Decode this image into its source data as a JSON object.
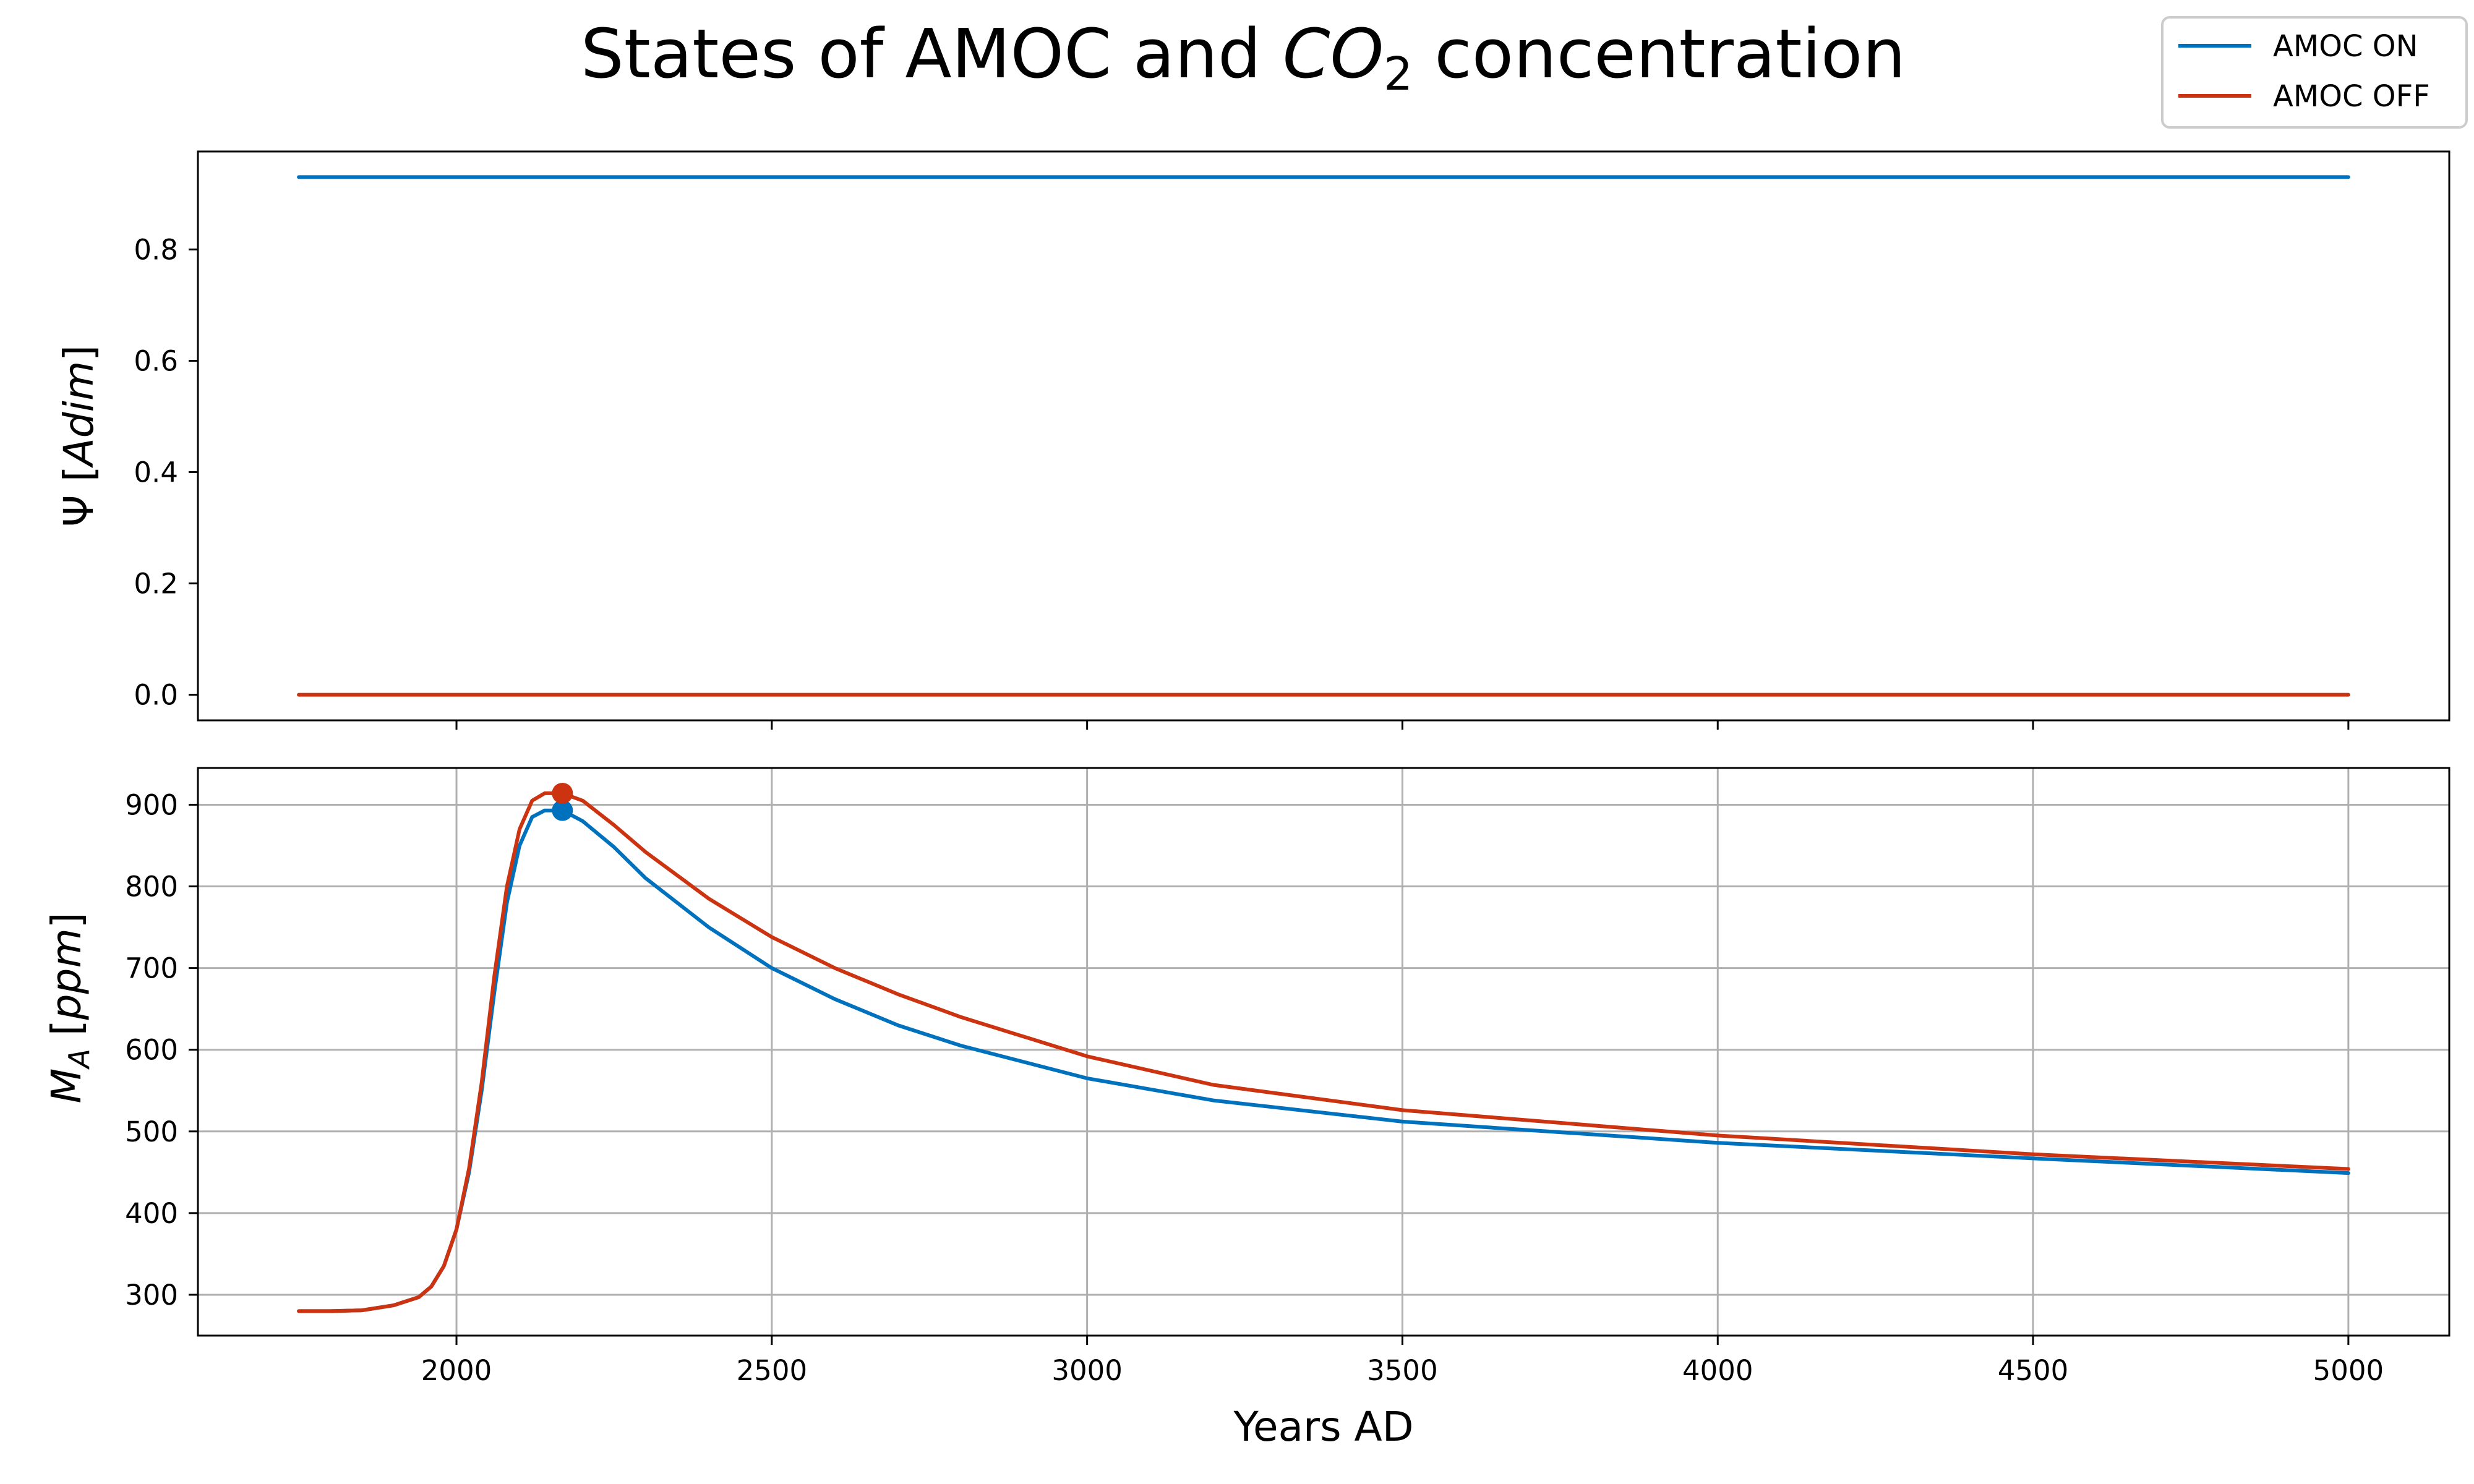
{
  "chart_data": {
    "type": "line",
    "title": "States of AMOC and CO₂ concentration",
    "title_parts": {
      "prefix": "States of AMOC and ",
      "italic": "CO",
      "subscript": "2",
      "suffix": " concentration"
    },
    "legend": {
      "placement": "top-right",
      "entries": [
        {
          "name": "AMOC ON",
          "color": "#0072bd"
        },
        {
          "name": "AMOC OFF",
          "color": "#cc3311"
        }
      ]
    },
    "xlabel": "Years AD",
    "xlim": [
      1590,
      5160
    ],
    "xticks": [
      2000,
      2500,
      3000,
      3500,
      4000,
      4500,
      5000
    ],
    "xtick_labels": [
      "2000",
      "2500",
      "3000",
      "3500",
      "4000",
      "4500",
      "5000"
    ],
    "panels": [
      {
        "id": "psi",
        "ylabel": {
          "symbol": "Ψ",
          "unit_italic": "Adim"
        },
        "ylim": [
          -0.046,
          0.976
        ],
        "yticks": [
          0.0,
          0.2,
          0.4,
          0.6,
          0.8
        ],
        "ytick_labels": [
          "0.0",
          "0.2",
          "0.4",
          "0.6",
          "0.8"
        ],
        "grid": false,
        "series": [
          {
            "name": "AMOC ON",
            "color": "#0072bd",
            "x": [
              1750,
              5000
            ],
            "y": [
              0.93,
              0.93
            ]
          },
          {
            "name": "AMOC OFF",
            "color": "#cc3311",
            "x": [
              1750,
              5000
            ],
            "y": [
              0.0,
              0.0
            ]
          }
        ]
      },
      {
        "id": "ma",
        "ylabel": {
          "symbol": "M",
          "subscript": "A",
          "unit_italic": "ppm"
        },
        "ylim": [
          250,
          945
        ],
        "yticks": [
          300,
          400,
          500,
          600,
          700,
          800,
          900
        ],
        "ytick_labels": [
          "300",
          "400",
          "500",
          "600",
          "700",
          "800",
          "900"
        ],
        "grid": true,
        "series": [
          {
            "name": "AMOC ON",
            "color": "#0072bd",
            "x": [
              1750,
              1800,
              1850,
              1900,
              1940,
              1960,
              1980,
              2000,
              2020,
              2040,
              2060,
              2080,
              2100,
              2120,
              2140,
              2168,
              2200,
              2250,
              2300,
              2400,
              2500,
              2600,
              2700,
              2800,
              3000,
              3200,
              3500,
              4000,
              4500,
              5000
            ],
            "y": [
              280,
              280,
              281,
              287,
              297,
              310,
              335,
              380,
              450,
              550,
              670,
              780,
              850,
              885,
              893,
              893,
              880,
              848,
              810,
              750,
              700,
              662,
              630,
              605,
              565,
              538,
              512,
              486,
              467,
              449
            ],
            "peak": {
              "x": 2168,
              "y": 893
            }
          },
          {
            "name": "AMOC OFF",
            "color": "#cc3311",
            "x": [
              1750,
              1800,
              1850,
              1900,
              1940,
              1960,
              1980,
              2000,
              2020,
              2040,
              2060,
              2080,
              2100,
              2120,
              2140,
              2168,
              2200,
              2250,
              2300,
              2400,
              2500,
              2600,
              2700,
              2800,
              3000,
              3200,
              3500,
              4000,
              4500,
              5000
            ],
            "y": [
              280,
              280,
              281,
              287,
              297,
              310,
              335,
              380,
              455,
              560,
              690,
              800,
              870,
              905,
              914,
              914,
              905,
              875,
              842,
              785,
              738,
              700,
              668,
              640,
              592,
              557,
              526,
              495,
              472,
              454
            ],
            "peak": {
              "x": 2168,
              "y": 914
            }
          }
        ]
      }
    ]
  }
}
